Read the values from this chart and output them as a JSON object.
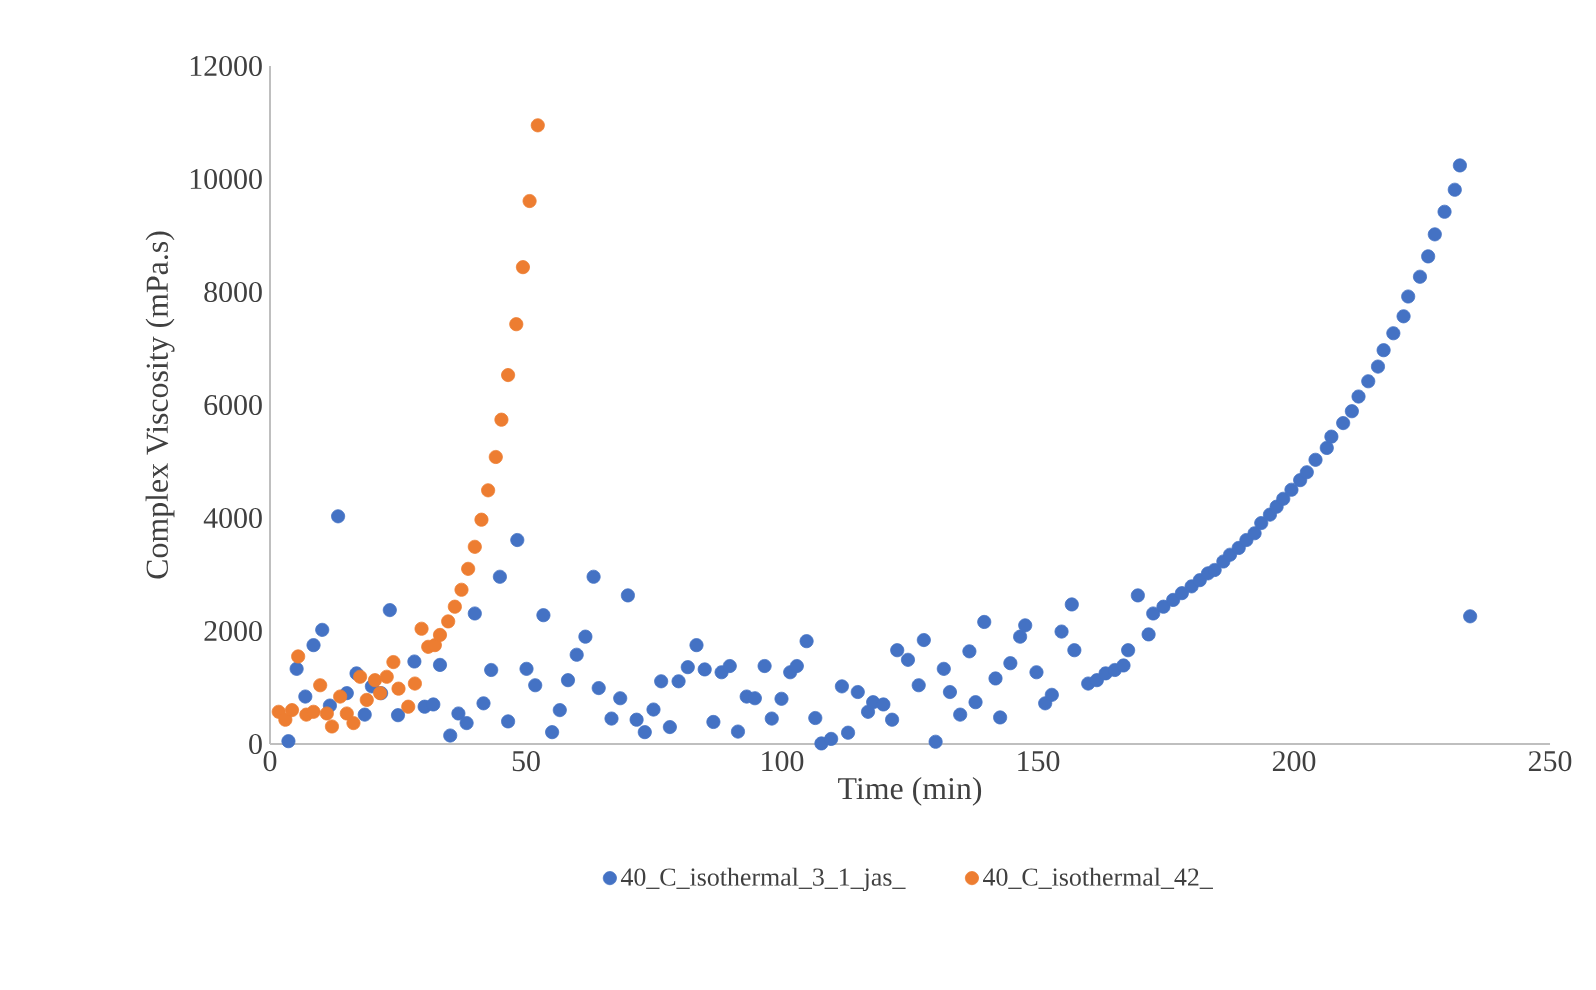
{
  "chart_data": {
    "type": "scatter",
    "xlabel": "Time (min)",
    "ylabel": "Complex  Viscosity  (mPa.s)",
    "xlim": [
      0,
      250
    ],
    "xticks": [
      0,
      50,
      100,
      150,
      200,
      250
    ],
    "ylim": [
      0,
      12000
    ],
    "yticks": [
      0,
      2000,
      4000,
      6000,
      8000,
      10000,
      12000
    ],
    "grid": false,
    "legend": "bottom",
    "series": [
      {
        "name": "40_C_isothermal_3_1_jas_",
        "color": "#4472c4",
        "x": [
          3.6,
          5.2,
          6.9,
          8.5,
          10.2,
          11.7,
          13.3,
          15.0,
          16.9,
          18.5,
          19.9,
          21.7,
          23.4,
          25.0,
          28.2,
          30.2,
          31.9,
          33.2,
          35.2,
          36.8,
          38.4,
          40.0,
          41.7,
          43.2,
          44.9,
          46.5,
          48.3,
          50.1,
          51.8,
          53.4,
          55.1,
          56.6,
          58.2,
          59.9,
          61.6,
          63.2,
          64.2,
          66.7,
          68.4,
          69.9,
          71.6,
          73.2,
          74.9,
          76.4,
          78.1,
          79.8,
          81.6,
          83.3,
          84.9,
          86.6,
          88.2,
          89.8,
          91.4,
          93.1,
          94.7,
          96.6,
          98.0,
          99.9,
          101.6,
          102.9,
          104.8,
          106.5,
          107.7,
          109.6,
          111.7,
          112.9,
          114.8,
          116.8,
          117.8,
          119.8,
          121.5,
          122.5,
          124.6,
          126.7,
          127.7,
          130.0,
          131.6,
          132.8,
          134.8,
          136.6,
          137.8,
          139.5,
          141.7,
          142.6,
          144.6,
          146.5,
          147.5,
          149.7,
          151.4,
          152.7,
          154.6,
          156.6,
          157.1,
          159.8,
          161.5,
          163.2,
          165.0,
          166.7,
          167.6,
          169.5,
          171.6,
          172.5,
          174.5,
          176.4,
          178.1,
          180.0,
          181.6,
          183.2,
          184.5,
          186.2,
          187.5,
          189.2,
          190.7,
          192.3,
          193.6,
          195.3,
          196.6,
          197.9,
          199.5,
          201.2,
          202.5,
          204.2,
          206.4,
          207.3,
          209.6,
          211.3,
          212.6,
          214.5,
          216.4,
          217.5,
          219.4,
          221.4,
          222.3,
          224.6,
          226.2,
          227.5,
          229.4,
          231.4,
          232.4,
          234.4
        ],
        "values": [
          50,
          1330,
          840,
          1750,
          2020,
          680,
          4030,
          900,
          1250,
          520,
          1020,
          900,
          2370,
          510,
          1460,
          660,
          700,
          1400,
          150,
          540,
          370,
          2310,
          720,
          1310,
          2960,
          400,
          3610,
          1330,
          1040,
          2280,
          210,
          600,
          1130,
          1580,
          1900,
          2960,
          990,
          450,
          810,
          2630,
          430,
          210,
          610,
          1110,
          300,
          1110,
          1360,
          1750,
          1320,
          390,
          1270,
          1380,
          220,
          840,
          810,
          1380,
          450,
          800,
          1270,
          1380,
          1820,
          460,
          10,
          90,
          1020,
          200,
          920,
          570,
          740,
          700,
          430,
          1660,
          1490,
          1040,
          1840,
          40,
          1330,
          920,
          520,
          1640,
          740,
          2160,
          1160,
          470,
          1430,
          1900,
          2100,
          1270,
          720,
          870,
          1990,
          2470,
          1660,
          1070,
          1130,
          1250,
          1310,
          1390,
          1660,
          2630,
          1940,
          2310,
          2430,
          2550,
          2670,
          2790,
          2900,
          3020,
          3080,
          3230,
          3350,
          3470,
          3610,
          3730,
          3910,
          4060,
          4200,
          4340,
          4500,
          4670,
          4810,
          5030,
          5240,
          5440,
          5680,
          5890,
          6150,
          6420,
          6680,
          6970,
          7270,
          7570,
          7920,
          8270,
          8630,
          9020,
          9420,
          9810,
          10240,
          2260
        ]
      },
      {
        "name": "40_C_isothermal_42_",
        "color": "#ed7d31",
        "x": [
          1.7,
          3.0,
          4.3,
          5.5,
          7.1,
          8.5,
          9.8,
          11.1,
          12.1,
          13.7,
          15.0,
          16.3,
          17.6,
          18.9,
          20.5,
          21.5,
          22.8,
          24.1,
          25.1,
          27.0,
          28.3,
          29.6,
          30.9,
          32.2,
          33.2,
          34.8,
          36.1,
          37.4,
          38.7,
          40.0,
          41.3,
          42.6,
          44.1,
          45.2,
          46.5,
          48.1,
          49.4,
          50.7,
          52.3
        ],
        "values": [
          570,
          430,
          600,
          1550,
          520,
          570,
          1040,
          540,
          310,
          840,
          540,
          370,
          1190,
          780,
          1130,
          900,
          1190,
          1450,
          980,
          660,
          1070,
          2040,
          1720,
          1750,
          1930,
          2170,
          2430,
          2730,
          3100,
          3490,
          3970,
          4490,
          5080,
          5740,
          6530,
          7430,
          8440,
          9610,
          10950
        ]
      }
    ]
  }
}
